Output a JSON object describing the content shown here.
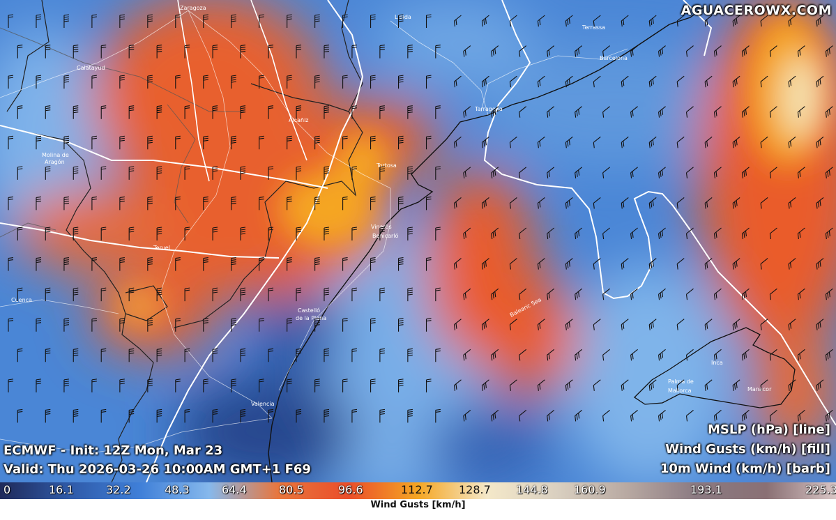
{
  "watermark": "AGUACEROWX.COM",
  "info_left": {
    "line1": "ECMWF - Init: 12Z Mon, Mar 23",
    "line2": "Valid: Thu 2026-03-26 10:00AM GMT+1 F69"
  },
  "info_right": {
    "line1": "MSLP (hPa) [line]",
    "line2": "Wind Gusts (km/h) [fill]",
    "line3": "10m Wind (km/h) [barb]"
  },
  "colorbar": {
    "title": "Wind Gusts [km/h]",
    "ticks": [
      "0",
      "16.1",
      "32.2",
      "48.3",
      "64.4",
      "80.5",
      "96.6",
      "112.7",
      "128.7",
      "144.8",
      "160.9",
      "193.1",
      "225.3"
    ],
    "colors": [
      "#1f2a5a",
      "#2f5aa8",
      "#3f7fd8",
      "#86b8ec",
      "#e8763d",
      "#ea4e2a",
      "#f5a623",
      "#f4e8c9",
      "#d9cfc0",
      "#b8a9a2",
      "#8b7a82",
      "#8a7074",
      "#d9c6c6"
    ]
  },
  "cities": [
    "Zaragoza",
    "Lleida",
    "Terrassa",
    "Barcelona",
    "Calatayud",
    "Alcañiz",
    "Tarragona",
    "Molina de Aragón",
    "Tortosa",
    "Vinaròs",
    "Benicarló",
    "Teruel",
    "Cuenca",
    "Castelló de la Plana",
    "Valencia",
    "Inca",
    "Palma de Mallorca",
    "Manacor",
    "Balearic Sea"
  ]
}
